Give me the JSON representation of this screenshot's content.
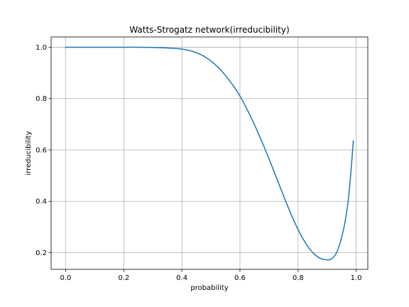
{
  "chart_data": {
    "type": "line",
    "title": "Watts-Strogatz network(irreducibility)",
    "xlabel": "probability",
    "ylabel": "irreducibility",
    "xlim": [
      -0.05,
      1.04
    ],
    "ylim": [
      0.135,
      1.04
    ],
    "xticks": [
      0.0,
      0.2,
      0.4,
      0.6,
      0.8,
      1.0
    ],
    "xtick_labels": [
      "0.0",
      "0.2",
      "0.4",
      "0.6",
      "0.8",
      "1.0"
    ],
    "yticks": [
      0.2,
      0.4,
      0.6,
      0.8,
      1.0
    ],
    "ytick_labels": [
      "0.2",
      "0.4",
      "0.6",
      "0.8",
      "1.0"
    ],
    "grid": true,
    "series": [
      {
        "color": "#1f77b4",
        "x": [
          0.0,
          0.1,
          0.2,
          0.25,
          0.3,
          0.35,
          0.4,
          0.43,
          0.46,
          0.49,
          0.52,
          0.55,
          0.58,
          0.6,
          0.62,
          0.65,
          0.68,
          0.7,
          0.72,
          0.74,
          0.76,
          0.78,
          0.8,
          0.82,
          0.84,
          0.86,
          0.88,
          0.9,
          0.91,
          0.92,
          0.93,
          0.94,
          0.95,
          0.96,
          0.97,
          0.975,
          0.98,
          0.985,
          0.99
        ],
        "y": [
          1.0,
          1.0,
          1.0,
          1.0,
          0.999,
          0.997,
          0.993,
          0.986,
          0.974,
          0.955,
          0.927,
          0.89,
          0.845,
          0.81,
          0.768,
          0.698,
          0.62,
          0.565,
          0.508,
          0.45,
          0.393,
          0.339,
          0.29,
          0.248,
          0.214,
          0.19,
          0.176,
          0.172,
          0.173,
          0.18,
          0.195,
          0.222,
          0.26,
          0.31,
          0.38,
          0.43,
          0.49,
          0.56,
          0.635
        ]
      }
    ]
  }
}
